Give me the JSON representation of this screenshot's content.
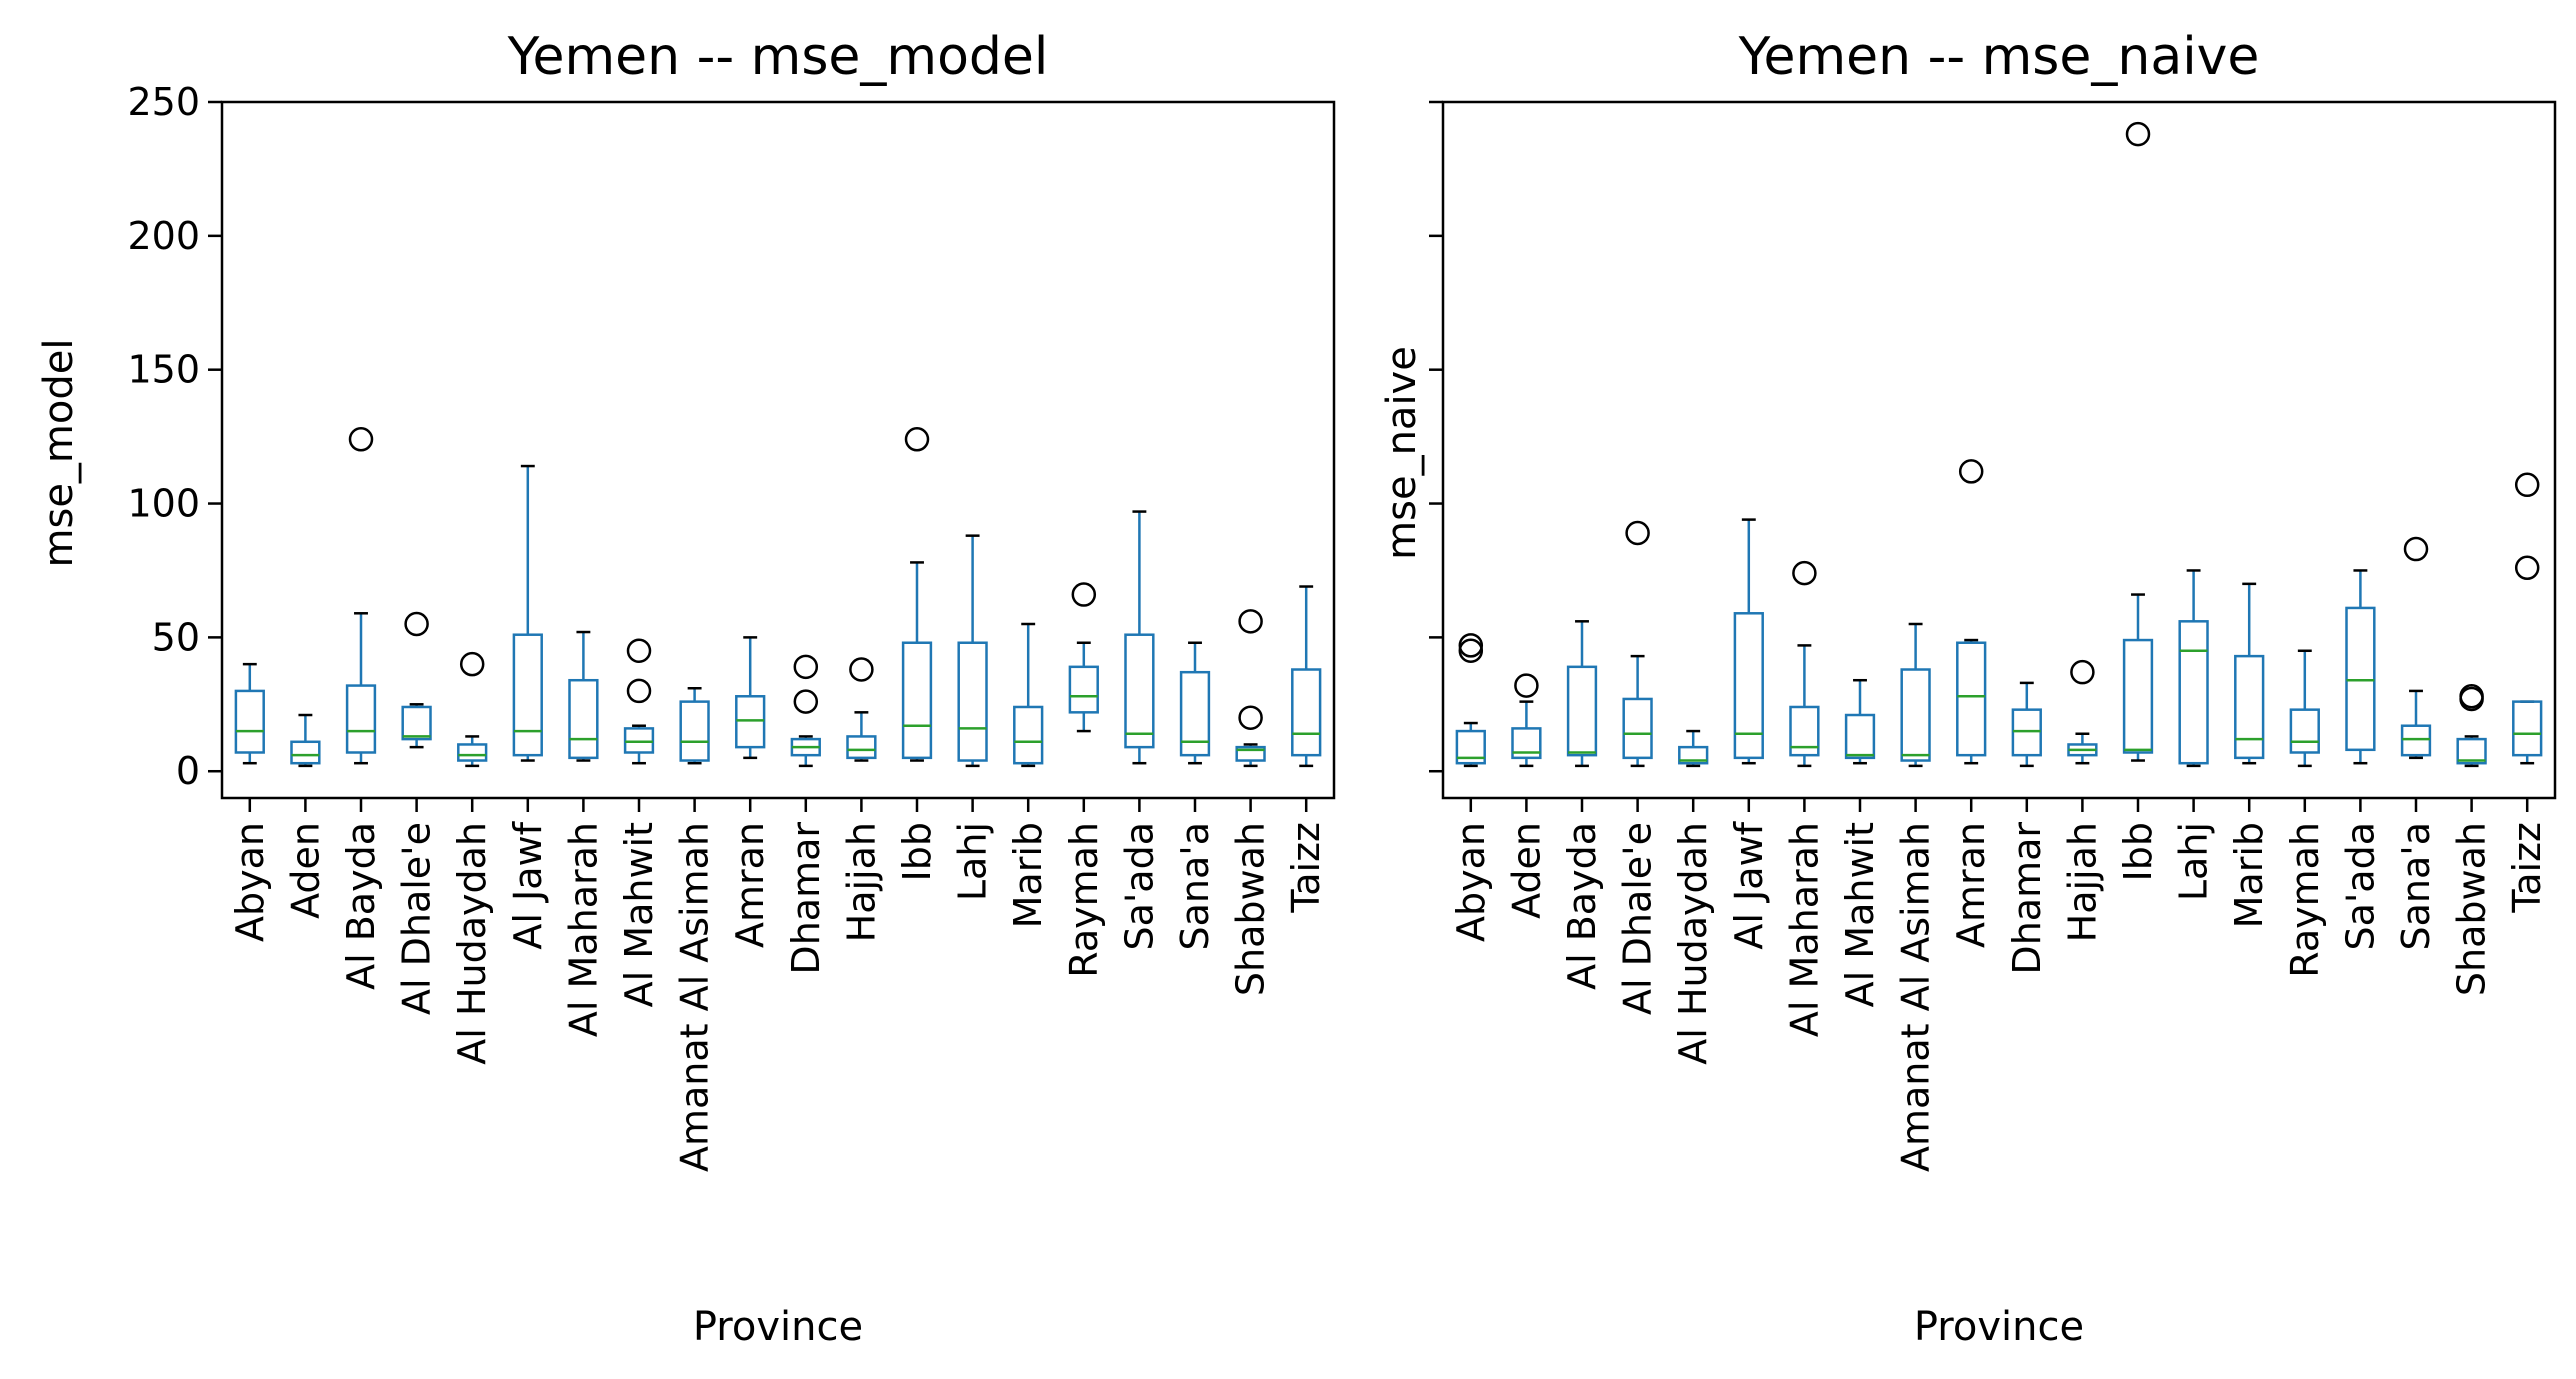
{
  "chart_data": [
    {
      "type": "box",
      "title": "Yemen -- mse_model",
      "xlabel": "Province",
      "ylabel": "mse_model",
      "ylim": [
        -10,
        250
      ],
      "yticks": [
        0,
        50,
        100,
        150,
        200,
        250
      ],
      "ytick_labels_shown": true,
      "grid": false,
      "colors": {
        "box": "#1f77b4",
        "median": "#2ca02c",
        "whisker": "#1f77b4",
        "flier": "#000000"
      },
      "categories": [
        "Abyan",
        "Aden",
        "Al Bayda",
        "Al Dhale'e",
        "Al Hudaydah",
        "Al Jawf",
        "Al Maharah",
        "Al Mahwit",
        "Amanat Al Asimah",
        "Amran",
        "Dhamar",
        "Hajjah",
        "Ibb",
        "Lahj",
        "Marib",
        "Raymah",
        "Sa'ada",
        "Sana'a",
        "Shabwah",
        "Taizz"
      ],
      "boxes": [
        {
          "whislo": 3,
          "q1": 7,
          "med": 15,
          "q3": 30,
          "whishi": 40,
          "fliers": []
        },
        {
          "whislo": 2,
          "q1": 3,
          "med": 6,
          "q3": 11,
          "whishi": 21,
          "fliers": []
        },
        {
          "whislo": 3,
          "q1": 7,
          "med": 15,
          "q3": 32,
          "whishi": 59,
          "fliers": [
            124
          ]
        },
        {
          "whislo": 9,
          "q1": 12,
          "med": 13,
          "q3": 24,
          "whishi": 25,
          "fliers": [
            55
          ]
        },
        {
          "whislo": 2,
          "q1": 4,
          "med": 6,
          "q3": 10,
          "whishi": 13,
          "fliers": [
            40
          ]
        },
        {
          "whislo": 4,
          "q1": 6,
          "med": 15,
          "q3": 51,
          "whishi": 114,
          "fliers": []
        },
        {
          "whislo": 4,
          "q1": 5,
          "med": 12,
          "q3": 34,
          "whishi": 52,
          "fliers": []
        },
        {
          "whislo": 3,
          "q1": 7,
          "med": 11,
          "q3": 16,
          "whishi": 17,
          "fliers": [
            30,
            45
          ]
        },
        {
          "whislo": 3,
          "q1": 4,
          "med": 11,
          "q3": 26,
          "whishi": 31,
          "fliers": []
        },
        {
          "whislo": 5,
          "q1": 9,
          "med": 19,
          "q3": 28,
          "whishi": 50,
          "fliers": []
        },
        {
          "whislo": 2,
          "q1": 6,
          "med": 9,
          "q3": 12,
          "whishi": 13,
          "fliers": [
            26,
            39
          ]
        },
        {
          "whislo": 4,
          "q1": 5,
          "med": 8,
          "q3": 13,
          "whishi": 22,
          "fliers": [
            38
          ]
        },
        {
          "whislo": 4,
          "q1": 5,
          "med": 17,
          "q3": 48,
          "whishi": 78,
          "fliers": [
            124
          ]
        },
        {
          "whislo": 2,
          "q1": 4,
          "med": 16,
          "q3": 48,
          "whishi": 88,
          "fliers": []
        },
        {
          "whislo": 2,
          "q1": 3,
          "med": 11,
          "q3": 24,
          "whishi": 55,
          "fliers": []
        },
        {
          "whislo": 15,
          "q1": 22,
          "med": 28,
          "q3": 39,
          "whishi": 48,
          "fliers": [
            66
          ]
        },
        {
          "whislo": 3,
          "q1": 9,
          "med": 14,
          "q3": 51,
          "whishi": 97,
          "fliers": []
        },
        {
          "whislo": 3,
          "q1": 6,
          "med": 11,
          "q3": 37,
          "whishi": 48,
          "fliers": []
        },
        {
          "whislo": 2,
          "q1": 4,
          "med": 8,
          "q3": 9,
          "whishi": 10,
          "fliers": [
            20,
            56
          ]
        },
        {
          "whislo": 2,
          "q1": 6,
          "med": 14,
          "q3": 38,
          "whishi": 69,
          "fliers": []
        }
      ]
    },
    {
      "type": "box",
      "title": "Yemen -- mse_naive",
      "xlabel": "Province",
      "ylabel": "mse_naive",
      "ylim": [
        -10,
        250
      ],
      "yticks": [
        0,
        50,
        100,
        150,
        200,
        250
      ],
      "ytick_labels_shown": false,
      "shared_y": true,
      "grid": false,
      "colors": {
        "box": "#1f77b4",
        "median": "#2ca02c",
        "whisker": "#1f77b4",
        "flier": "#000000"
      },
      "categories": [
        "Abyan",
        "Aden",
        "Al Bayda",
        "Al Dhale'e",
        "Al Hudaydah",
        "Al Jawf",
        "Al Maharah",
        "Al Mahwit",
        "Amanat Al Asimah",
        "Amran",
        "Dhamar",
        "Hajjah",
        "Ibb",
        "Lahj",
        "Marib",
        "Raymah",
        "Sa'ada",
        "Sana'a",
        "Shabwah",
        "Taizz"
      ],
      "boxes": [
        {
          "whislo": 2,
          "q1": 3,
          "med": 5,
          "q3": 15,
          "whishi": 18,
          "fliers": [
            45,
            47
          ]
        },
        {
          "whislo": 2,
          "q1": 5,
          "med": 7,
          "q3": 16,
          "whishi": 26,
          "fliers": [
            32
          ]
        },
        {
          "whislo": 2,
          "q1": 6,
          "med": 7,
          "q3": 39,
          "whishi": 56,
          "fliers": []
        },
        {
          "whislo": 2,
          "q1": 5,
          "med": 14,
          "q3": 27,
          "whishi": 43,
          "fliers": [
            89
          ]
        },
        {
          "whislo": 2,
          "q1": 3,
          "med": 4,
          "q3": 9,
          "whishi": 15,
          "fliers": []
        },
        {
          "whislo": 3,
          "q1": 5,
          "med": 14,
          "q3": 59,
          "whishi": 94,
          "fliers": []
        },
        {
          "whislo": 2,
          "q1": 6,
          "med": 9,
          "q3": 24,
          "whishi": 47,
          "fliers": [
            74
          ]
        },
        {
          "whislo": 3,
          "q1": 5,
          "med": 6,
          "q3": 21,
          "whishi": 34,
          "fliers": []
        },
        {
          "whislo": 2,
          "q1": 4,
          "med": 6,
          "q3": 38,
          "whishi": 55,
          "fliers": []
        },
        {
          "whislo": 3,
          "q1": 6,
          "med": 28,
          "q3": 48,
          "whishi": 49,
          "fliers": [
            112
          ]
        },
        {
          "whislo": 2,
          "q1": 6,
          "med": 15,
          "q3": 23,
          "whishi": 33,
          "fliers": []
        },
        {
          "whislo": 3,
          "q1": 6,
          "med": 8,
          "q3": 10,
          "whishi": 14,
          "fliers": [
            37
          ]
        },
        {
          "whislo": 4,
          "q1": 7,
          "med": 8,
          "q3": 49,
          "whishi": 66,
          "fliers": [
            238
          ]
        },
        {
          "whislo": 2,
          "q1": 3,
          "med": 45,
          "q3": 56,
          "whishi": 75,
          "fliers": []
        },
        {
          "whislo": 3,
          "q1": 5,
          "med": 12,
          "q3": 43,
          "whishi": 70,
          "fliers": []
        },
        {
          "whislo": 2,
          "q1": 7,
          "med": 11,
          "q3": 23,
          "whishi": 45,
          "fliers": []
        },
        {
          "whislo": 3,
          "q1": 8,
          "med": 34,
          "q3": 61,
          "whishi": 75,
          "fliers": []
        },
        {
          "whislo": 5,
          "q1": 6,
          "med": 12,
          "q3": 17,
          "whishi": 30,
          "fliers": [
            83
          ]
        },
        {
          "whislo": 2,
          "q1": 3,
          "med": 4,
          "q3": 12,
          "whishi": 13,
          "fliers": [
            27,
            28
          ]
        },
        {
          "whislo": 3,
          "q1": 6,
          "med": 14,
          "q3": 26,
          "whishi": 26,
          "fliers": [
            76,
            107
          ]
        }
      ]
    }
  ]
}
